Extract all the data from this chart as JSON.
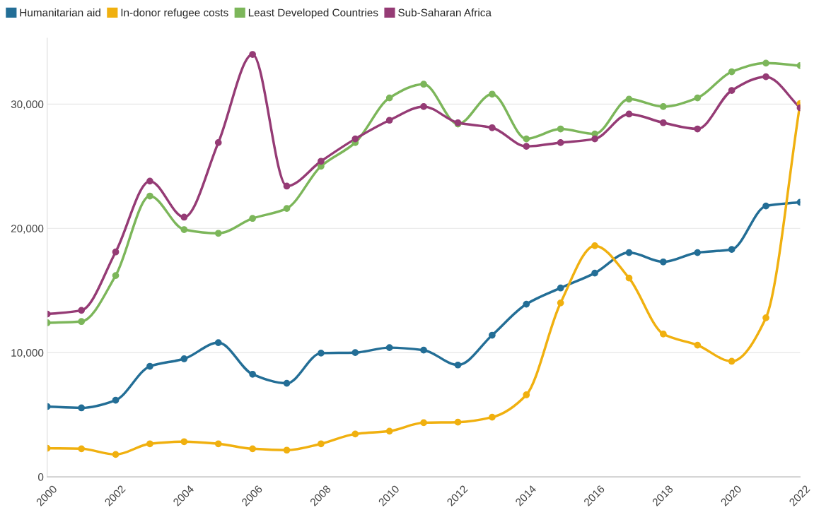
{
  "chart_data": {
    "type": "line",
    "x": [
      2000,
      2001,
      2002,
      2003,
      2004,
      2005,
      2006,
      2007,
      2008,
      2009,
      2010,
      2011,
      2012,
      2013,
      2014,
      2015,
      2016,
      2017,
      2018,
      2019,
      2020,
      2021,
      2022
    ],
    "series": [
      {
        "name": "Humanitarian aid",
        "color": "#236e96",
        "values": [
          5660,
          5550,
          6170,
          8900,
          9500,
          10800,
          8260,
          7530,
          9960,
          10000,
          10400,
          10200,
          9000,
          11400,
          13900,
          15200,
          16400,
          18050,
          17300,
          18050,
          18300,
          21800,
          22100
        ]
      },
      {
        "name": "In-donor refugee costs",
        "color": "#f0b00f",
        "values": [
          2300,
          2260,
          1800,
          2660,
          2830,
          2660,
          2260,
          2150,
          2660,
          3450,
          3680,
          4360,
          4400,
          4800,
          6600,
          14000,
          18600,
          16000,
          11500,
          10600,
          9300,
          12800,
          30050
        ]
      },
      {
        "name": "Least Developed Countries",
        "color": "#7cb65a",
        "values": [
          12400,
          12500,
          16200,
          22600,
          19900,
          19600,
          20800,
          21600,
          25000,
          26900,
          30500,
          31600,
          28400,
          30800,
          27200,
          28000,
          27600,
          30400,
          29800,
          30500,
          32600,
          33300,
          33100
        ]
      },
      {
        "name": "Sub-Saharan Africa",
        "color": "#953b75",
        "values": [
          13100,
          13400,
          18100,
          23800,
          20900,
          26900,
          34000,
          23400,
          25400,
          27200,
          28700,
          29800,
          28500,
          28100,
          26600,
          26900,
          27200,
          29200,
          28500,
          28000,
          31100,
          32200,
          29700
        ]
      }
    ],
    "xlim": [
      2000,
      2022
    ],
    "xticks": [
      2000,
      2002,
      2004,
      2006,
      2008,
      2010,
      2012,
      2014,
      2016,
      2018,
      2020,
      2022
    ],
    "ylim": [
      0,
      35300
    ],
    "yticks": [
      {
        "value": 0,
        "label": "0"
      },
      {
        "value": 10000,
        "label": "10,000"
      },
      {
        "value": 20000,
        "label": "20,000"
      },
      {
        "value": 30000,
        "label": "30,000"
      }
    ],
    "grid": "y",
    "legend": "top left",
    "marker": "circle",
    "line_style": "solid"
  }
}
